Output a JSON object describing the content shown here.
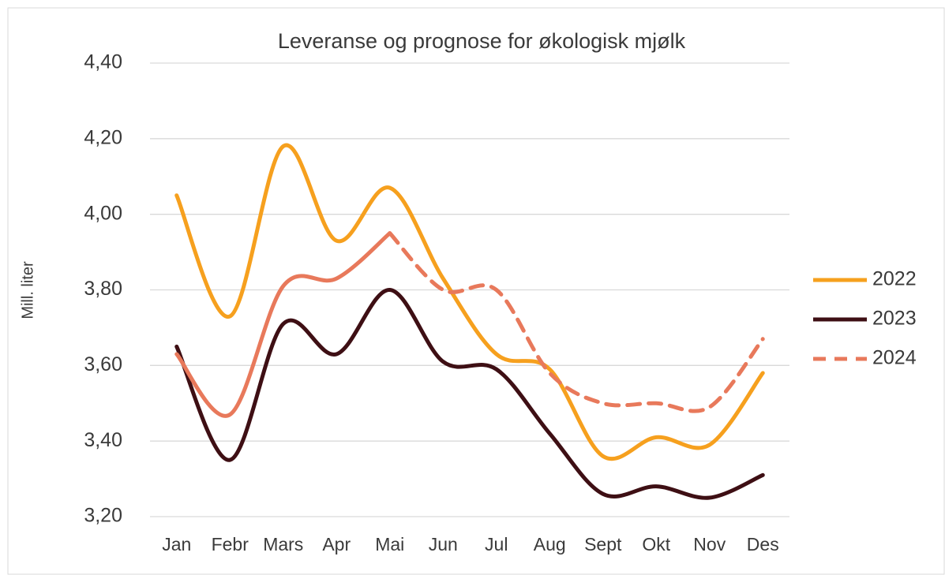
{
  "chart_data": {
    "type": "line",
    "title": "Leveranse og prognose for økologisk mjølk",
    "y_label": "Mill. liter",
    "categories": [
      "Jan",
      "Febr",
      "Mars",
      "Apr",
      "Mai",
      "Jun",
      "Jul",
      "Aug",
      "Sept",
      "Okt",
      "Nov",
      "Des"
    ],
    "series": [
      {
        "name": "2022",
        "color": "#f6a01e",
        "values": [
          4.05,
          3.73,
          4.18,
          3.93,
          4.07,
          3.83,
          3.63,
          3.59,
          3.36,
          3.41,
          3.39,
          3.58
        ]
      },
      {
        "name": "2023",
        "color": "#3e0f14",
        "values": [
          3.65,
          3.35,
          3.71,
          3.63,
          3.8,
          3.61,
          3.59,
          3.42,
          3.26,
          3.28,
          3.25,
          3.31
        ]
      },
      {
        "name": "2024",
        "color": "#e8795b",
        "dashed_after": "Mai",
        "values": [
          3.63,
          3.47,
          3.81,
          3.83,
          3.95,
          3.8,
          3.8,
          3.58,
          3.5,
          3.5,
          3.49,
          3.67
        ]
      }
    ],
    "ylim": [
      3.2,
      4.4
    ],
    "yticks": [
      {
        "value": 3.2,
        "label": "3,20"
      },
      {
        "value": 3.4,
        "label": "3,40"
      },
      {
        "value": 3.6,
        "label": "3,60"
      },
      {
        "value": 3.8,
        "label": "3,80"
      },
      {
        "value": 4.0,
        "label": "4,00"
      },
      {
        "value": 4.2,
        "label": "4,20"
      },
      {
        "value": 4.4,
        "label": "4,40"
      }
    ],
    "grid": true,
    "legend": "right"
  }
}
